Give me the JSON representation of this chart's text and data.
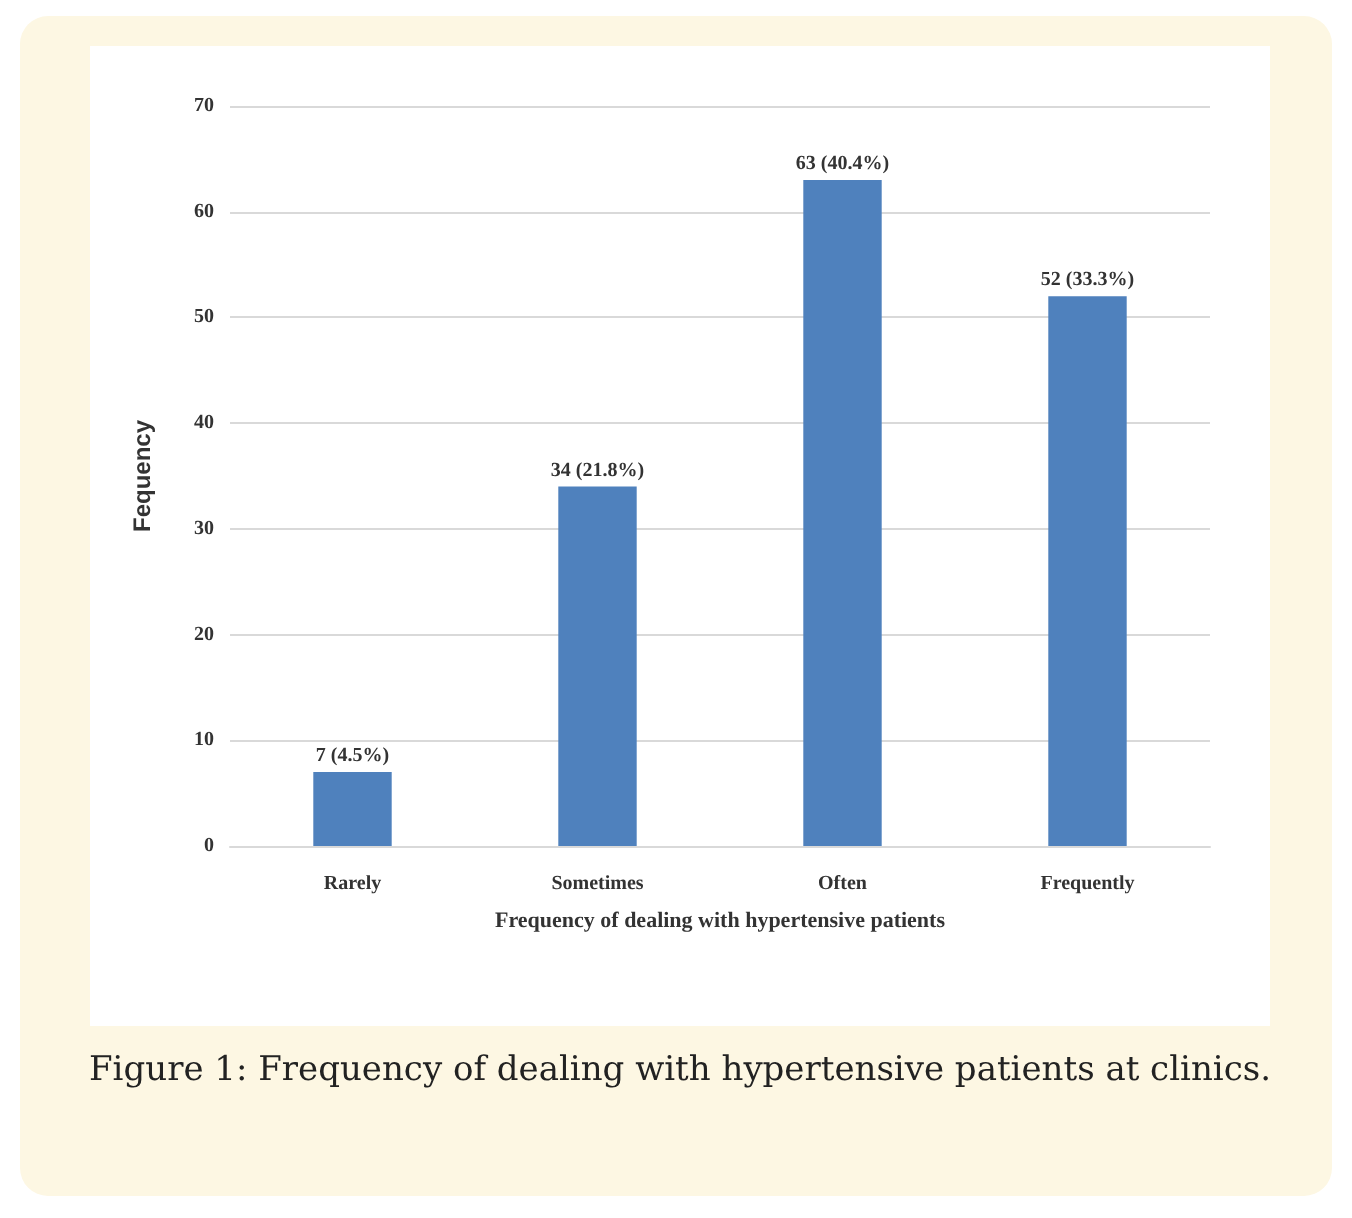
{
  "chart_data": {
    "type": "bar",
    "xlabel": "Frequency of dealing with hypertensive patients",
    "ylabel": "Fequency",
    "categories": [
      "Rarely",
      "Sometimes",
      "Often",
      "Frequently"
    ],
    "values": [
      7,
      34,
      63,
      52
    ],
    "value_labels": [
      "7 (4.5%)",
      "34 (21.8%)",
      "63 (40.4%)",
      "52 (33.3%)"
    ],
    "color": "#4f81bd",
    "ylim": [
      0,
      70
    ],
    "yticks": [
      0,
      10,
      20,
      30,
      40,
      50,
      60,
      70
    ],
    "grid": "y",
    "annotations": [
      "Figure 1: Frequency of dealing with hypertensive patients at clinics."
    ]
  }
}
